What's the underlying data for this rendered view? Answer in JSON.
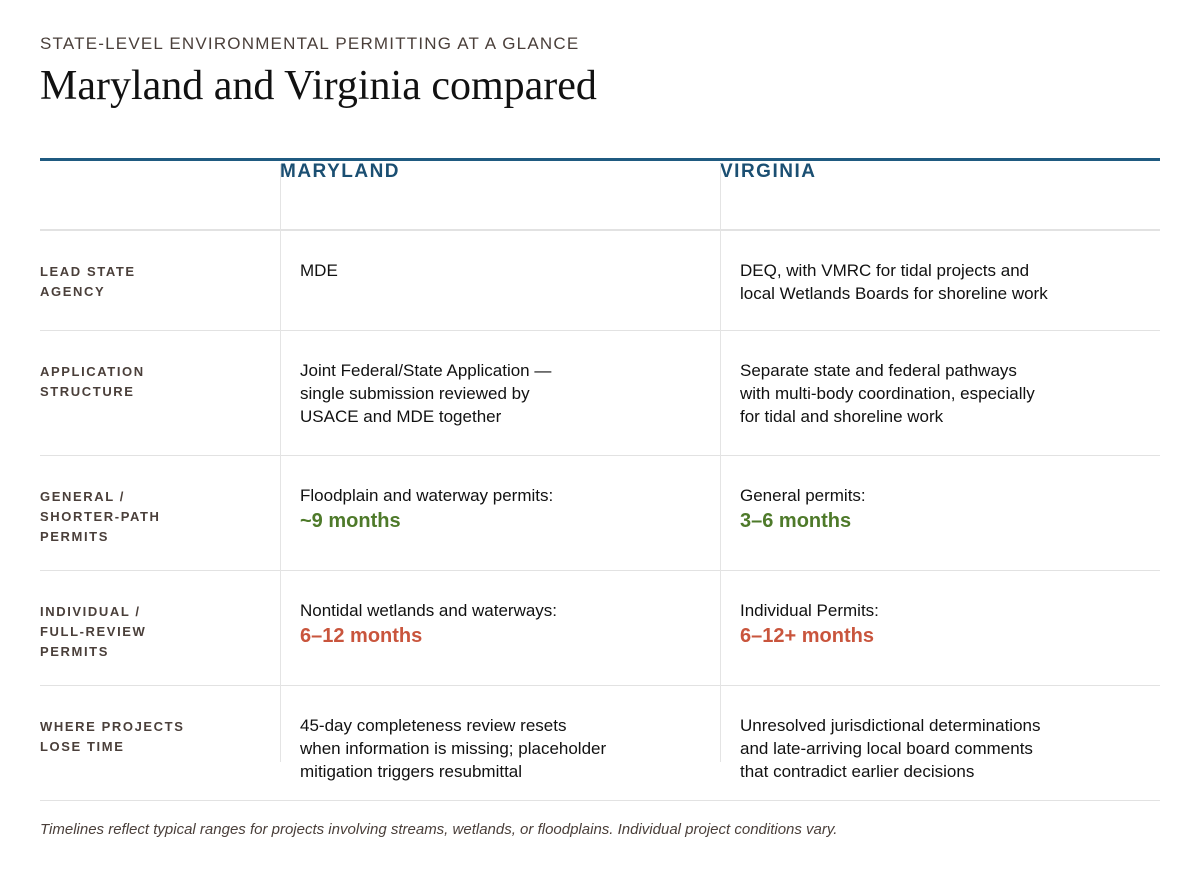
{
  "header": {
    "eyebrow": "STATE-LEVEL ENVIRONMENTAL PERMITTING AT A GLANCE",
    "title": "Maryland and Virginia compared"
  },
  "columns": {
    "maryland": "MARYLAND",
    "virginia": "VIRGINIA"
  },
  "rows": [
    {
      "label": "LEAD STATE\nAGENCY",
      "maryland": {
        "text": "MDE"
      },
      "virginia": {
        "text": "DEQ, with VMRC for tidal projects and\nlocal Wetlands Boards for shoreline work"
      }
    },
    {
      "label": "APPLICATION\nSTRUCTURE",
      "maryland": {
        "text": "Joint Federal/State Application —\nsingle submission reviewed by\nUSACE and MDE together"
      },
      "virginia": {
        "text": "Separate state and federal pathways\nwith multi-body coordination, especially\nfor tidal and shoreline work"
      }
    },
    {
      "label": "GENERAL /\nSHORTER-PATH\nPERMITS",
      "maryland": {
        "text": "Floodplain and waterway permits:",
        "highlight": "~9 months"
      },
      "virginia": {
        "text": "General permits:",
        "highlight": "3–6 months"
      }
    },
    {
      "label": "INDIVIDUAL /\nFULL-REVIEW\nPERMITS",
      "maryland": {
        "text": "Nontidal wetlands and waterways:",
        "highlight": "6–12 months"
      },
      "virginia": {
        "text": "Individual Permits:",
        "highlight": "6–12+ months"
      }
    },
    {
      "label": "WHERE PROJECTS\nLOSE TIME",
      "maryland": {
        "text": "45-day completeness review resets\nwhen information is missing; placeholder\nmitigation triggers resubmittal"
      },
      "virginia": {
        "text": "Unresolved jurisdictional determinations\nand late-arriving local board comments\nthat contradict earlier decisions"
      }
    }
  ],
  "colors": {
    "accent": "#1b4f72",
    "short_timeline": "#4e7a2a",
    "long_timeline": "#c9553d"
  },
  "footnote": "Timelines reflect typical ranges for projects involving streams, wetlands, or floodplains. Individual project conditions vary."
}
